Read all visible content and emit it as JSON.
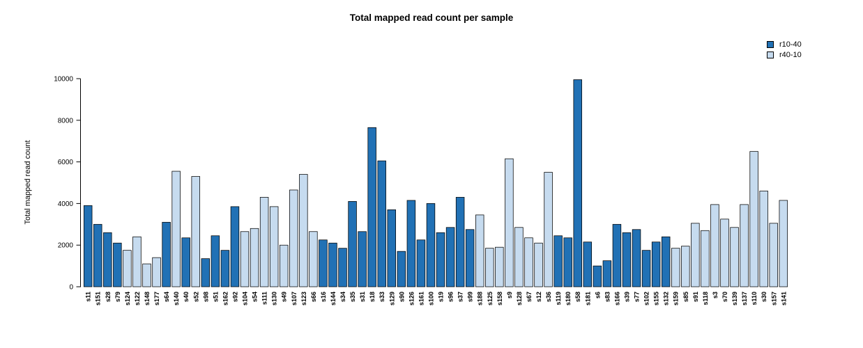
{
  "chart_data": {
    "type": "bar",
    "title": "Total mapped read count per sample",
    "ylabel": "Total mapped read count",
    "xlabel": "",
    "ylim": [
      0,
      10000
    ],
    "yticks": [
      0,
      2000,
      4000,
      6000,
      8000,
      10000
    ],
    "grid": false,
    "legend_position": "top-right",
    "legend": [
      {
        "name": "r10-40",
        "color": "#2171b5"
      },
      {
        "name": "r40-10",
        "color": "#c6dbef"
      }
    ],
    "categories": [
      "s11",
      "s151",
      "s28",
      "s79",
      "s124",
      "s122",
      "s148",
      "s177",
      "s64",
      "s140",
      "s40",
      "s52",
      "s98",
      "s51",
      "s162",
      "s92",
      "s104",
      "s54",
      "s111",
      "s130",
      "s49",
      "s107",
      "s123",
      "s66",
      "s16",
      "s144",
      "s34",
      "s35",
      "s31",
      "s18",
      "s33",
      "s129",
      "s90",
      "s126",
      "s161",
      "s100",
      "s19",
      "s96",
      "s37",
      "s99",
      "s188",
      "s125",
      "s158",
      "s9",
      "s128",
      "s67",
      "s12",
      "s36",
      "s119",
      "s180",
      "s58",
      "s181",
      "s6",
      "s83",
      "s166",
      "s39",
      "s77",
      "s102",
      "s155",
      "s132",
      "s159",
      "s85",
      "s91",
      "s118",
      "s3",
      "s70",
      "s139",
      "s137",
      "s110",
      "s30",
      "s157",
      "s141"
    ],
    "values": [
      3900,
      3000,
      2600,
      2100,
      1750,
      2400,
      1100,
      1400,
      3100,
      5550,
      2350,
      5300,
      1350,
      2450,
      1750,
      3850,
      2650,
      2800,
      4300,
      3850,
      2000,
      4650,
      5400,
      2650,
      2250,
      2100,
      1850,
      4100,
      2650,
      7650,
      6050,
      3700,
      1700,
      4150,
      2250,
      4000,
      2600,
      2850,
      4300,
      2750,
      3450,
      1850,
      1900,
      6150,
      2850,
      2350,
      2100,
      5500,
      2450,
      2350,
      9950,
      2150,
      1000,
      1250,
      3000,
      2600,
      2750,
      1750,
      2150,
      2400,
      1850,
      1950,
      3050,
      2700,
      3950,
      3250,
      2850,
      3950,
      6500,
      4600,
      3050,
      4150
    ],
    "groups": [
      "r10-40",
      "r10-40",
      "r10-40",
      "r10-40",
      "r40-10",
      "r40-10",
      "r40-10",
      "r40-10",
      "r10-40",
      "r40-10",
      "r10-40",
      "r40-10",
      "r10-40",
      "r10-40",
      "r10-40",
      "r10-40",
      "r40-10",
      "r40-10",
      "r40-10",
      "r40-10",
      "r40-10",
      "r40-10",
      "r40-10",
      "r40-10",
      "r10-40",
      "r10-40",
      "r10-40",
      "r10-40",
      "r10-40",
      "r10-40",
      "r10-40",
      "r10-40",
      "r10-40",
      "r10-40",
      "r10-40",
      "r10-40",
      "r10-40",
      "r10-40",
      "r10-40",
      "r10-40",
      "r40-10",
      "r40-10",
      "r40-10",
      "r40-10",
      "r40-10",
      "r40-10",
      "r40-10",
      "r40-10",
      "r10-40",
      "r10-40",
      "r10-40",
      "r10-40",
      "r10-40",
      "r10-40",
      "r10-40",
      "r10-40",
      "r10-40",
      "r10-40",
      "r10-40",
      "r10-40",
      "r40-10",
      "r40-10",
      "r40-10",
      "r40-10",
      "r40-10",
      "r40-10",
      "r40-10",
      "r40-10",
      "r40-10",
      "r40-10",
      "r40-10",
      "r40-10"
    ]
  }
}
